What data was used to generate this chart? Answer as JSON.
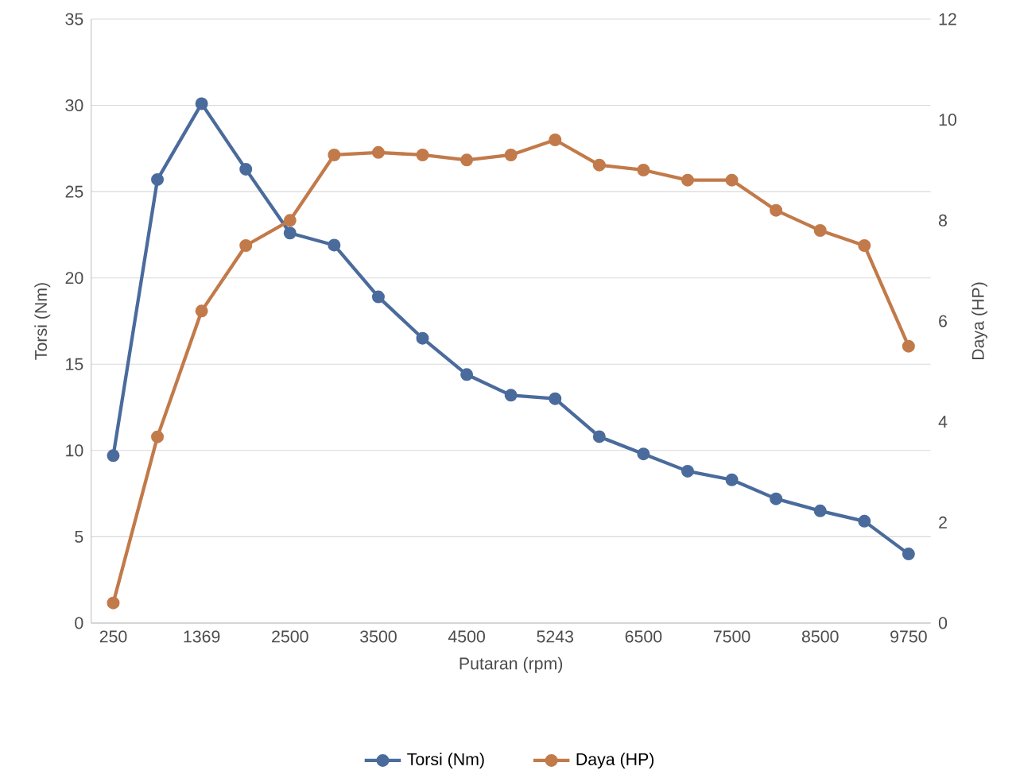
{
  "chart_data": {
    "type": "line",
    "xlabel": "Putaran (rpm)",
    "ylabel": "Torsi (Nm)",
    "y2label": "Daya (HP)",
    "categories": [
      "250",
      null,
      "1369",
      null,
      "2500",
      null,
      "3500",
      null,
      "4500",
      null,
      "5243",
      null,
      "6500",
      null,
      "7500",
      null,
      "8500",
      null,
      "9750"
    ],
    "series": [
      {
        "name": "Torsi (Nm)",
        "color": "#4a6b9c",
        "values": [
          9.7,
          25.7,
          30.1,
          26.3,
          22.6,
          21.9,
          18.9,
          16.5,
          14.4,
          13.2,
          13.0,
          10.8,
          9.8,
          8.8,
          8.3,
          7.2,
          6.5,
          5.9,
          4.0
        ]
      },
      {
        "name": "Daya (HP)",
        "color": "#c27a4a",
        "axis": "y2",
        "values": [
          0.4,
          3.7,
          6.2,
          7.5,
          8.0,
          9.3,
          9.35,
          9.3,
          9.2,
          9.3,
          9.6,
          9.1,
          9.0,
          8.8,
          8.8,
          8.2,
          7.8,
          7.5,
          5.5
        ]
      }
    ],
    "ylim": [
      0,
      35
    ],
    "yticks": [
      0,
      5,
      10,
      15,
      20,
      25,
      30,
      35
    ],
    "y2lim": [
      0,
      12
    ],
    "y2ticks": [
      0,
      2,
      4,
      6,
      8,
      10,
      12
    ],
    "grid": "y",
    "legend": "bottom",
    "marker": "circle",
    "line_style": "solid"
  }
}
